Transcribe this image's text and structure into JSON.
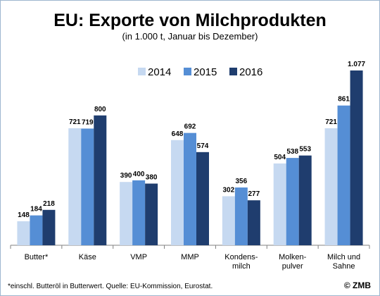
{
  "chart_data": {
    "type": "bar",
    "title": "EU: Exporte von Milchprodukten",
    "subtitle": "(in 1.000 t, Januar bis Dezember)",
    "categories": [
      [
        "Butter*"
      ],
      [
        "Käse"
      ],
      [
        "VMP"
      ],
      [
        "MMP"
      ],
      [
        "Kondens-",
        "milch"
      ],
      [
        "Molken-",
        "pulver"
      ],
      [
        "Milch und",
        "Sahne"
      ]
    ],
    "series": [
      {
        "name": "2014",
        "color": "#c6d9f1",
        "values": [
          148,
          721,
          390,
          648,
          302,
          504,
          721
        ],
        "labels": [
          "148",
          "721",
          "390",
          "648",
          "302",
          "504",
          "721"
        ]
      },
      {
        "name": "2015",
        "color": "#558ed5",
        "values": [
          184,
          719,
          400,
          692,
          356,
          538,
          861
        ],
        "labels": [
          "184",
          "719",
          "400",
          "692",
          "356",
          "538",
          "861"
        ]
      },
      {
        "name": "2016",
        "color": "#1f3d6e",
        "values": [
          218,
          800,
          380,
          574,
          277,
          553,
          1077
        ],
        "labels": [
          "218",
          "800",
          "380",
          "574",
          "277",
          "553",
          "1.077"
        ]
      }
    ],
    "ylim": [
      0,
      1090
    ],
    "grid": false,
    "legend_position": "top-center",
    "footnote": "*einschl. Butteröl in Butterwert. Quelle: EU-Kommission, Eurostat.",
    "source": "© ZMB"
  }
}
